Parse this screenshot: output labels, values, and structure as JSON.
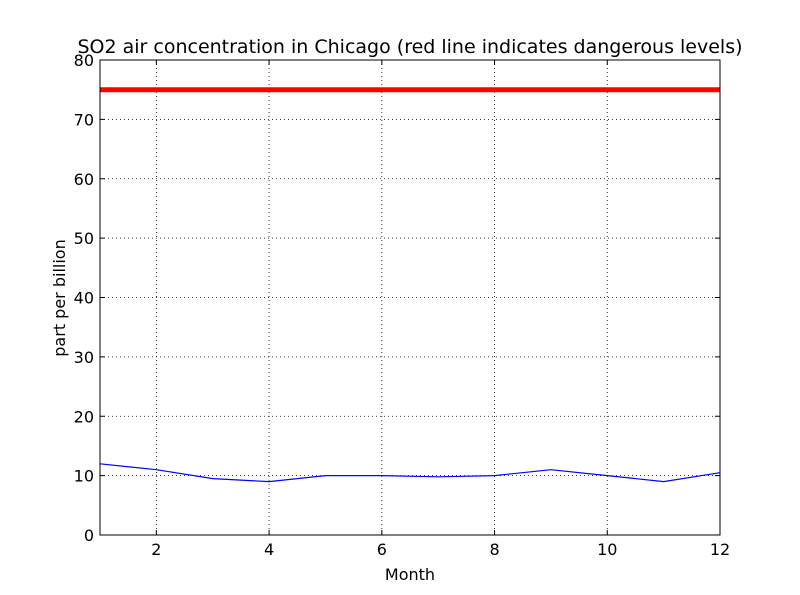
{
  "chart_data": {
    "type": "line",
    "title": "SO2 air concentration in Chicago (red line indicates dangerous levels)",
    "xlabel": "Month",
    "ylabel": "part per billion",
    "xlim": [
      1,
      12
    ],
    "ylim": [
      0,
      80
    ],
    "x_ticks": [
      2,
      4,
      6,
      8,
      10,
      12
    ],
    "y_ticks": [
      0,
      10,
      20,
      30,
      40,
      50,
      60,
      70,
      80
    ],
    "grid": true,
    "series": [
      {
        "color": "#0000ff",
        "x": [
          1,
          2,
          3,
          4,
          5,
          6,
          7,
          8,
          9,
          10,
          11,
          12
        ],
        "values": [
          12,
          11,
          9.5,
          9,
          10,
          10,
          9.8,
          10,
          11,
          10,
          9,
          10.5
        ]
      }
    ],
    "reference_lines": [
      {
        "y": 75,
        "color": "#ff0000"
      }
    ]
  }
}
